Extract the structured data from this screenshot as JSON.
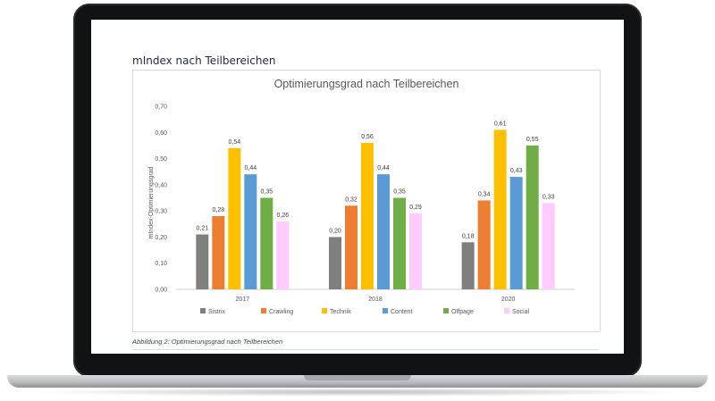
{
  "heading": "mIndex nach Teilbereichen",
  "caption": "Abbildung 2: Optimierungsgrad nach Teilbereichen",
  "chart_data": {
    "type": "bar",
    "title": "Optimierungsgrad nach Teilbereichen",
    "xlabel": "",
    "ylabel": "mIndex-Optimierungsgrad",
    "ylim": [
      0,
      0.7
    ],
    "yticks": [
      "0,00",
      "0,10",
      "0,20",
      "0,30",
      "0,40",
      "0,50",
      "0,60",
      "0,70"
    ],
    "categories": [
      "2017",
      "2018",
      "2020"
    ],
    "grid": false,
    "legend": "bottom",
    "series": [
      {
        "name": "Sistrix",
        "color": "#7f7f7f",
        "values": [
          0.21,
          0.2,
          0.18
        ],
        "labels": [
          "0,21",
          "0,20",
          "0,18"
        ]
      },
      {
        "name": "Crawling",
        "color": "#ed7d31",
        "values": [
          0.28,
          0.32,
          0.34
        ],
        "labels": [
          "0,28",
          "0,32",
          "0,34"
        ]
      },
      {
        "name": "Technik",
        "color": "#ffc000",
        "values": [
          0.54,
          0.56,
          0.61
        ],
        "labels": [
          "0,54",
          "0,56",
          "0,61"
        ]
      },
      {
        "name": "Content",
        "color": "#5b9bd5",
        "values": [
          0.44,
          0.44,
          0.43
        ],
        "labels": [
          "0,44",
          "0,44",
          "0,43"
        ]
      },
      {
        "name": "Offpage",
        "color": "#70ad47",
        "values": [
          0.35,
          0.35,
          0.55
        ],
        "labels": [
          "0,35",
          "0,35",
          "0,55"
        ]
      },
      {
        "name": "Social",
        "color": "#ffccff",
        "values": [
          0.26,
          0.29,
          0.33
        ],
        "labels": [
          "0,26",
          "0,29",
          "0,33"
        ]
      }
    ]
  }
}
